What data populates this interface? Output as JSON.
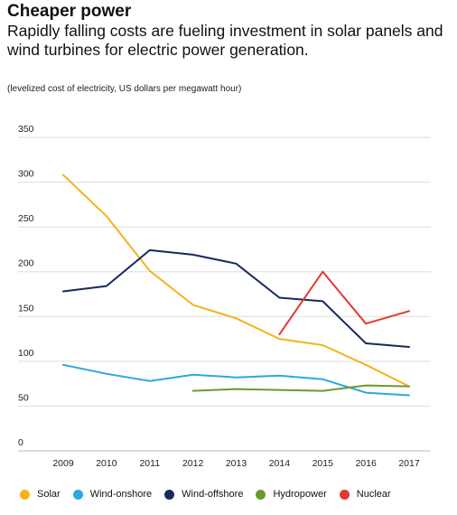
{
  "chart_data": {
    "type": "line",
    "title": "Cheaper power",
    "subtitle": "Rapidly falling costs are fueling investment in solar panels and wind turbines for electric power generation.",
    "note": "(levelized cost of electricity, US dollars per megawatt hour)",
    "x": [
      "2009",
      "2010",
      "2011",
      "2012",
      "2013",
      "2014",
      "2015",
      "2016",
      "2017"
    ],
    "ylim": [
      0,
      350
    ],
    "yticks": [
      0,
      50,
      100,
      150,
      200,
      250,
      300,
      350
    ],
    "grid": true,
    "legend_position": "bottom",
    "series": [
      {
        "name": "Solar",
        "color": "#F5B21B",
        "values": [
          308,
          262,
          201,
          163,
          148,
          125,
          118,
          96,
          72
        ]
      },
      {
        "name": "Wind-onshore",
        "color": "#2AA8E2",
        "values": [
          96,
          86,
          78,
          85,
          82,
          84,
          80,
          65,
          62
        ]
      },
      {
        "name": "Wind-offshore",
        "color": "#162A5B",
        "values": [
          178,
          184,
          224,
          219,
          209,
          171,
          167,
          120,
          116
        ]
      },
      {
        "name": "Hydropower",
        "color": "#6A9A2E",
        "values": [
          null,
          null,
          null,
          67,
          69,
          68,
          67,
          73,
          72
        ]
      },
      {
        "name": "Nuclear",
        "color": "#E23A32",
        "values": [
          null,
          null,
          null,
          null,
          null,
          130,
          200,
          142,
          156
        ]
      }
    ]
  }
}
